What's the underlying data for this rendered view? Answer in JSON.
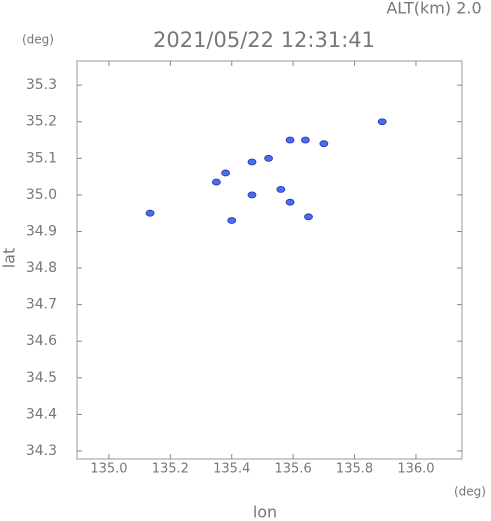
{
  "chart_data": {
    "type": "scatter",
    "altitude_label": "ALT(km) 2.0",
    "title": "2021/05/22 12:31:41",
    "y_unit": "(deg)",
    "x_unit": "(deg)",
    "xlabel": "lon",
    "ylabel": "lat",
    "xlim": [
      134.896,
      136.15
    ],
    "ylim": [
      34.278,
      35.366
    ],
    "xticks": [
      {
        "value": 135,
        "label": "135.0"
      },
      135.2,
      135.4,
      135.6,
      135.8,
      {
        "value": 136,
        "label": "136.0"
      }
    ],
    "yticks": [
      34.3,
      34.4,
      34.5,
      34.6,
      34.7,
      34.8,
      34.9,
      {
        "value": 35,
        "label": "35.0"
      },
      35.1,
      35.2,
      35.3
    ],
    "series": [
      {
        "color": "#4a6cf0",
        "x": [
          135.134,
          135.35,
          135.38,
          135.4,
          135.466,
          135.466,
          135.52,
          135.59,
          135.56,
          135.59,
          135.64,
          135.7,
          135.89,
          135.65
        ],
        "values": [
          34.95,
          35.035,
          35.06,
          34.93,
          35.0,
          35.09,
          35.1,
          35.15,
          35.015,
          34.98,
          35.15,
          35.14,
          35.2,
          34.94
        ]
      }
    ]
  }
}
